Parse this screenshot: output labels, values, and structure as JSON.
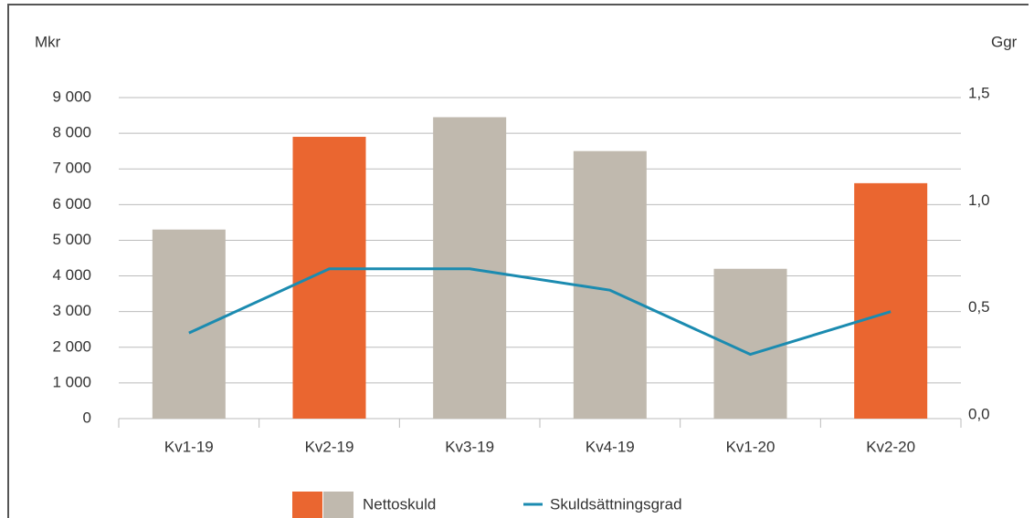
{
  "chart_data": {
    "type": "bar",
    "y_label": "Mkr",
    "y2_label": "Ggr",
    "categories": [
      "Kv1-19",
      "Kv2-19",
      "Kv3-19",
      "Kv4-19",
      "Kv1-20",
      "Kv2-20"
    ],
    "series": [
      {
        "name": "Nettoskuld",
        "type": "bar",
        "values": [
          5300,
          7900,
          8450,
          7500,
          4200,
          6600
        ],
        "colors": [
          "#c0b9ae",
          "#ea6630",
          "#c0b9ae",
          "#c0b9ae",
          "#c0b9ae",
          "#ea6630"
        ],
        "legend_colors": [
          "#ea6630",
          "#c0b9ae"
        ]
      },
      {
        "name": "Skuldsättningsgrad",
        "type": "line",
        "axis": "y2",
        "color": "#1b8bb0",
        "values": [
          0.4,
          0.7,
          0.7,
          0.6,
          0.3,
          0.5
        ]
      }
    ],
    "ylim": [
      0,
      9000
    ],
    "yticks": [
      0,
      {
        "value": 1000,
        "label": "1 000"
      },
      {
        "value": 2000,
        "label": "2 000"
      },
      {
        "value": 3000,
        "label": "3 000"
      },
      {
        "value": 4000,
        "label": "4 000"
      },
      {
        "value": 5000,
        "label": "5 000"
      },
      {
        "value": 6000,
        "label": "6 000"
      },
      {
        "value": 7000,
        "label": "7 000"
      },
      {
        "value": 8000,
        "label": "8 000"
      },
      {
        "value": 9000,
        "label": "9 000"
      }
    ],
    "y2lim": [
      0,
      1.5
    ],
    "y2ticks": [
      {
        "value": 0,
        "label": "0,0"
      },
      {
        "value": 0.5,
        "label": "0,5"
      },
      {
        "value": 1.0,
        "label": "1,0"
      },
      {
        "value": 1.5,
        "label": "1,5"
      }
    ],
    "grid": true
  }
}
